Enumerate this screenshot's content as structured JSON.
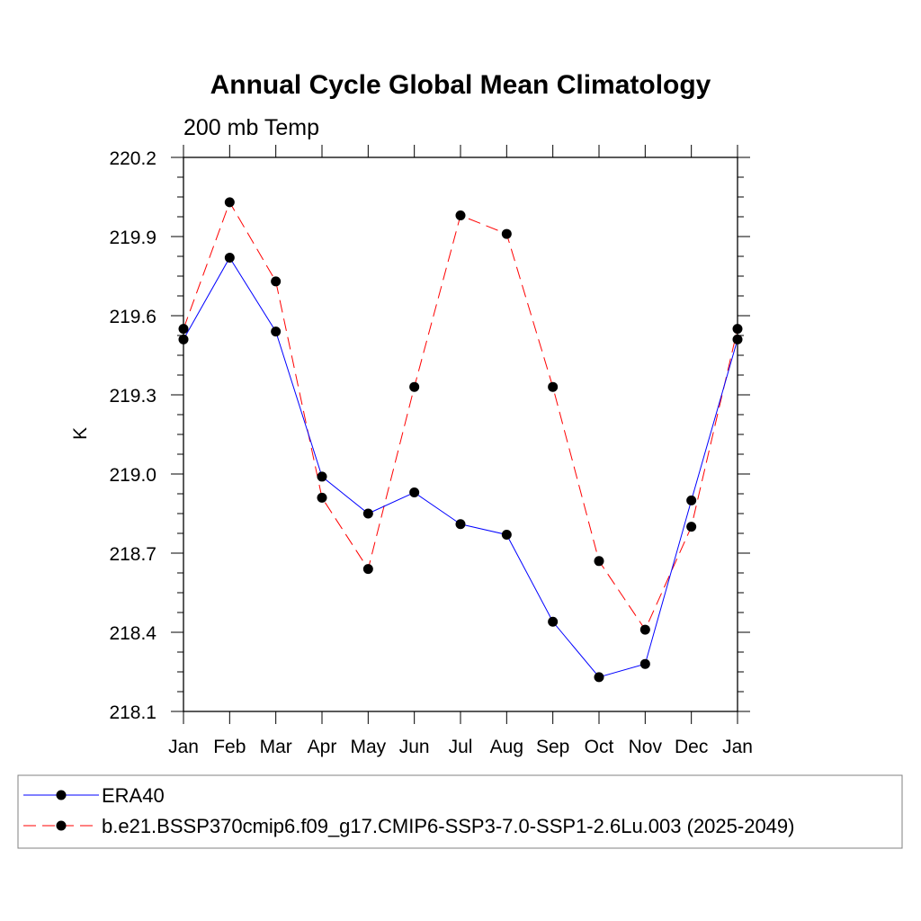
{
  "chart_data": {
    "type": "line",
    "title": "Annual Cycle Global Mean Climatology",
    "subtitle": "200 mb Temp",
    "xlabel": "",
    "ylabel": "K",
    "categories": [
      "Jan",
      "Feb",
      "Mar",
      "Apr",
      "May",
      "Jun",
      "Jul",
      "Aug",
      "Sep",
      "Oct",
      "Nov",
      "Dec",
      "Jan"
    ],
    "ylim": [
      218.1,
      220.2
    ],
    "yticks": [
      "218.1",
      "218.4",
      "218.7",
      "219.0",
      "219.3",
      "219.6",
      "219.9",
      "220.2"
    ],
    "grid": false,
    "legend_position": "bottom",
    "series": [
      {
        "name": "ERA40",
        "color": "#0000ff",
        "dash": "solid",
        "values": [
          219.51,
          219.82,
          219.54,
          218.99,
          218.85,
          218.93,
          218.81,
          218.77,
          218.44,
          218.23,
          218.28,
          218.9,
          219.51
        ]
      },
      {
        "name": "b.e21.BSSP370cmip6.f09_g17.CMIP6-SSP3-7.0-SSP1-2.6Lu.003 (2025-2049)",
        "color": "#ff0000",
        "dash": "dashed",
        "values": [
          219.55,
          220.03,
          219.73,
          218.91,
          218.64,
          219.33,
          219.98,
          219.91,
          219.33,
          218.67,
          218.41,
          218.8,
          219.55
        ]
      }
    ]
  }
}
